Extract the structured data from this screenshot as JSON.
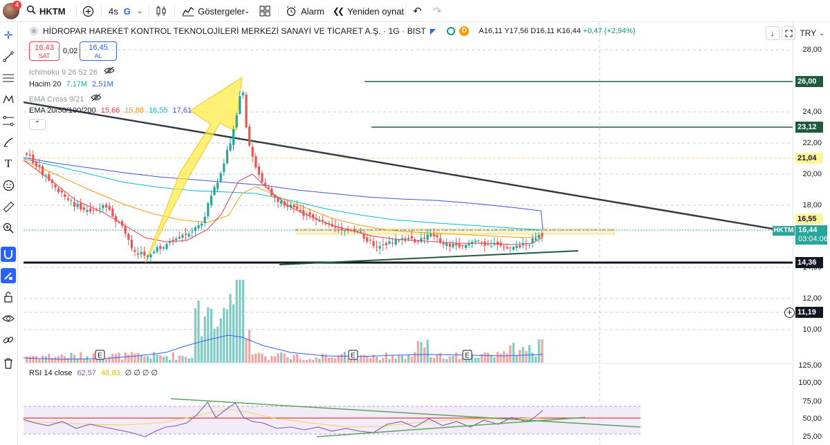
{
  "toolbar": {
    "notification_count": "4",
    "symbol": "HKTM",
    "interval": "4s",
    "interval_badge": "G",
    "indicators_label": "Göstergeler",
    "alarm_label": "Alarm",
    "replay_label": "Yeniden oynat"
  },
  "legend": {
    "title": "HİDROPAR HAREKET KONTROL TEKNOLOJİLERİ MERKEZİ SANAYİ VE TİCARET A.Ş. · 1G · BIST",
    "badge": "D",
    "o": "A16,11",
    "h": "Y17,56",
    "l": "D16,11",
    "c": "K16,44",
    "change": "+0,47 (+2,94%)",
    "currency": "TRY"
  },
  "trade": {
    "sell_price": "16,43",
    "sell_label": "SAT",
    "spread": "0,02",
    "buy_price": "16,45",
    "buy_label": "AL"
  },
  "indicators": {
    "ichimoku": "Ichimoku 9 26 52 26",
    "volume_name": "Hacim 20",
    "volume_v1": "7,17M",
    "volume_v2": "2,51M",
    "ema_cross": "EMA Cross 9/21",
    "ema_name": "EMA 20/50/100/200",
    "ema20": "15,66",
    "ema50": "15,88",
    "ema100": "16,55",
    "ema200": "17,61"
  },
  "rsi": {
    "name": "RSI 14 close",
    "v1": "62,57",
    "v2": "48,83",
    "extra": "∅ ∅ ∅ ∅"
  },
  "price_axis": {
    "ticks": [
      "28,00",
      "24,00",
      "22,00",
      "20,00",
      "18,00",
      "14,00",
      "12,00",
      "10,00"
    ],
    "labels": {
      "l26": "26,00",
      "l2312": "23,12",
      "l2104": "21,04",
      "l1655": "16,55",
      "last": "16,44",
      "countdown": "03:04:06",
      "l1436": "14,36",
      "l1119": "11,19"
    },
    "symbol_tag": "HKTM"
  },
  "rsi_axis": {
    "ticks": [
      "125,00",
      "100,00",
      "75,00",
      "50,00",
      "25,00"
    ]
  },
  "events": [
    "E",
    "E",
    "E"
  ],
  "colors": {
    "up": "#26a69a",
    "down": "#ef5350",
    "ema20": "#f23645",
    "ema50": "#ff9800",
    "ema100": "#00bcd4",
    "ema200": "#3f51d8",
    "accent": "#2962ff"
  }
}
